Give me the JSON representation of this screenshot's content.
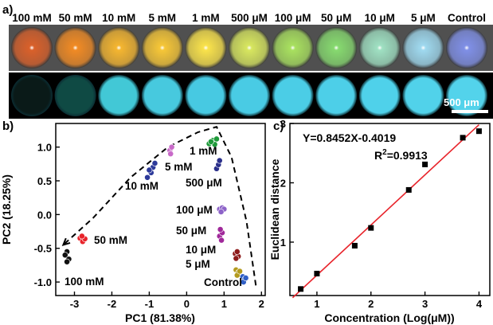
{
  "panel_a": {
    "label": "a)",
    "concentrations": [
      "100 mM",
      "50 mM",
      "10 mM",
      "5 mM",
      "1 mM",
      "500 μM",
      "100 μM",
      "50 μM",
      "10 μM",
      "5 μM",
      "Control"
    ],
    "scale_bar_label": "500 μm",
    "top_row_colors": [
      "#d9602a",
      "#f08a24",
      "#f4b530",
      "#f6c637",
      "#f9e24b",
      "#d7e65f",
      "#a8e05f",
      "#86d96f",
      "#9fe0c2",
      "#9fd9ef",
      "#7f8fe6"
    ],
    "bottom_row_colors": [
      "#0a1a18",
      "#0f4a44",
      "#42c8d6",
      "#47c9de",
      "#47c9e2",
      "#49cbe4",
      "#4bcde6",
      "#4dcfe8",
      "#4fd1ea",
      "#51d2ea",
      "#53d3eb"
    ]
  },
  "chart_data": [
    {
      "panel": "b)",
      "type": "scatter",
      "xlabel": "PC1 (81.38%)",
      "ylabel": "PC2 (18.25%)",
      "xlim": [
        -3.5,
        2.1
      ],
      "ylim": [
        -1.2,
        1.35
      ],
      "xticks": [
        -3,
        -2,
        -1,
        0,
        1,
        2
      ],
      "yticks": [
        -1.0,
        -0.5,
        0.0,
        0.5,
        1.0
      ],
      "series": [
        {
          "name": "100 mM",
          "color": "#111111",
          "points": [
            [
              -3.2,
              -0.55
            ],
            [
              -3.25,
              -0.6
            ],
            [
              -3.15,
              -0.66
            ],
            [
              -3.2,
              -0.7
            ]
          ]
        },
        {
          "name": "50 mM",
          "color": "#e8242b",
          "points": [
            [
              -2.85,
              -0.35
            ],
            [
              -2.78,
              -0.4
            ],
            [
              -2.72,
              -0.36
            ],
            [
              -2.8,
              -0.32
            ]
          ]
        },
        {
          "name": "10 mM",
          "color": "#2d3a9a",
          "points": [
            [
              -1.05,
              0.55
            ],
            [
              -0.95,
              0.62
            ],
            [
              -0.9,
              0.7
            ],
            [
              -0.85,
              0.76
            ],
            [
              -1.0,
              0.66
            ]
          ]
        },
        {
          "name": "5 mM",
          "color": "#c86ac8",
          "points": [
            [
              -0.45,
              0.95
            ],
            [
              -0.4,
              1.0
            ],
            [
              -0.43,
              0.9
            ]
          ]
        },
        {
          "name": "1 mM",
          "color": "#1f9a3a",
          "points": [
            [
              0.6,
              1.05
            ],
            [
              0.7,
              1.1
            ],
            [
              0.8,
              1.12
            ],
            [
              0.75,
              1.04
            ],
            [
              0.65,
              1.08
            ]
          ]
        },
        {
          "name": "500 μM",
          "color": "#2a2f8a",
          "points": [
            [
              0.8,
              0.68
            ],
            [
              0.85,
              0.74
            ],
            [
              0.88,
              0.8
            ]
          ]
        },
        {
          "name": "100 μM",
          "color": "#8d63c8",
          "points": [
            [
              0.88,
              0.08
            ],
            [
              0.95,
              0.1
            ],
            [
              1.0,
              0.08
            ],
            [
              0.92,
              0.04
            ]
          ]
        },
        {
          "name": "50 μM",
          "color": "#a0289a",
          "points": [
            [
              0.88,
              -0.32
            ],
            [
              0.95,
              -0.27
            ],
            [
              0.9,
              -0.22
            ],
            [
              0.93,
              -0.38
            ]
          ]
        },
        {
          "name": "10 μM",
          "color": "#8e1b1b",
          "points": [
            [
              1.3,
              -0.58
            ],
            [
              1.38,
              -0.62
            ],
            [
              1.32,
              -0.65
            ],
            [
              1.35,
              -0.55
            ]
          ]
        },
        {
          "name": "5 μM",
          "color": "#b39a1e",
          "points": [
            [
              1.32,
              -0.82
            ],
            [
              1.38,
              -0.86
            ],
            [
              1.35,
              -0.9
            ],
            [
              1.42,
              -0.84
            ]
          ]
        },
        {
          "name": "Control",
          "color": "#2f5fc6",
          "points": [
            [
              1.5,
              -0.92
            ],
            [
              1.55,
              -0.96
            ],
            [
              1.52,
              -1.0
            ],
            [
              1.58,
              -0.94
            ]
          ]
        }
      ],
      "point_labels": [
        "100 mM",
        "50 mM",
        "10 mM",
        "5 mM",
        "1 mM",
        "500 μM",
        "100 μM",
        "50 μM",
        "10 μM",
        "5 μM",
        "Control"
      ],
      "trajectory": [
        [
          1.85,
          -1.05
        ],
        [
          1.6,
          -0.1
        ],
        [
          1.2,
          0.85
        ],
        [
          0.8,
          1.3
        ],
        [
          0.3,
          1.22
        ],
        [
          -0.5,
          1.0
        ],
        [
          -1.5,
          0.55
        ],
        [
          -2.5,
          -0.05
        ],
        [
          -3.3,
          -0.45
        ]
      ]
    },
    {
      "panel": "c)",
      "type": "scatter",
      "xlabel": "Concentration (Log(μM))",
      "ylabel": "Euclidean distance",
      "xlim": [
        0.5,
        4.2
      ],
      "ylim": [
        0.1,
        3.0
      ],
      "xticks": [
        1,
        2,
        3,
        4
      ],
      "yticks": [
        1,
        2,
        3
      ],
      "points": [
        [
          0.7,
          0.21
        ],
        [
          1.0,
          0.47
        ],
        [
          1.7,
          0.94
        ],
        [
          2.0,
          1.24
        ],
        [
          2.7,
          1.88
        ],
        [
          3.0,
          2.31
        ],
        [
          3.7,
          2.76
        ],
        [
          4.0,
          2.87
        ]
      ],
      "fit": {
        "slope": 0.8452,
        "intercept": -0.4019,
        "x_range": [
          0.55,
          4.0
        ],
        "color": "#e8242b"
      },
      "equation": "Y=0.8452X-0.4019",
      "r2_prefix": "R",
      "r2_sup": "2",
      "r2_value": "=0.9913"
    }
  ]
}
